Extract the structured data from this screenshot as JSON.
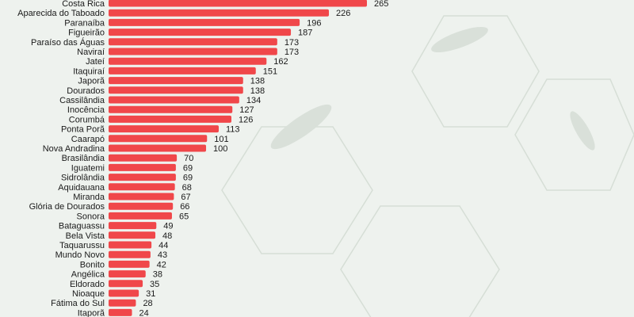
{
  "chart_data": {
    "type": "bar",
    "orientation": "horizontal",
    "title": "",
    "xlabel": "",
    "ylabel": "",
    "grid": false,
    "xlim": [
      0,
      265
    ],
    "bar_color": "#f0474a",
    "categories": [
      "Costa Rica",
      "Aparecida do Taboado",
      "Paranaíba",
      "Figueirão",
      "Paraíso das Águas",
      "Naviraí",
      "Jateí",
      "Itaquiraí",
      "Japorã",
      "Dourados",
      "Cassilândia",
      "Inocência",
      "Corumbá",
      "Ponta Porã",
      "Caarapó",
      "Nova Andradina",
      "Brasilândia",
      "Iguatemi",
      "Sidrolândia",
      "Aquidauana",
      "Miranda",
      "Glória de Dourados",
      "Sonora",
      "Bataguassu",
      "Bela Vista",
      "Taquarussu",
      "Mundo Novo",
      "Bonito",
      "Angélica",
      "Eldorado",
      "Nioaque",
      "Fátima do Sul",
      "Itaporã"
    ],
    "values": [
      265,
      226,
      196,
      187,
      173,
      173,
      162,
      151,
      138,
      138,
      134,
      127,
      126,
      113,
      101,
      100,
      70,
      69,
      69,
      68,
      67,
      66,
      65,
      49,
      48,
      44,
      43,
      42,
      38,
      35,
      31,
      28,
      24
    ]
  }
}
